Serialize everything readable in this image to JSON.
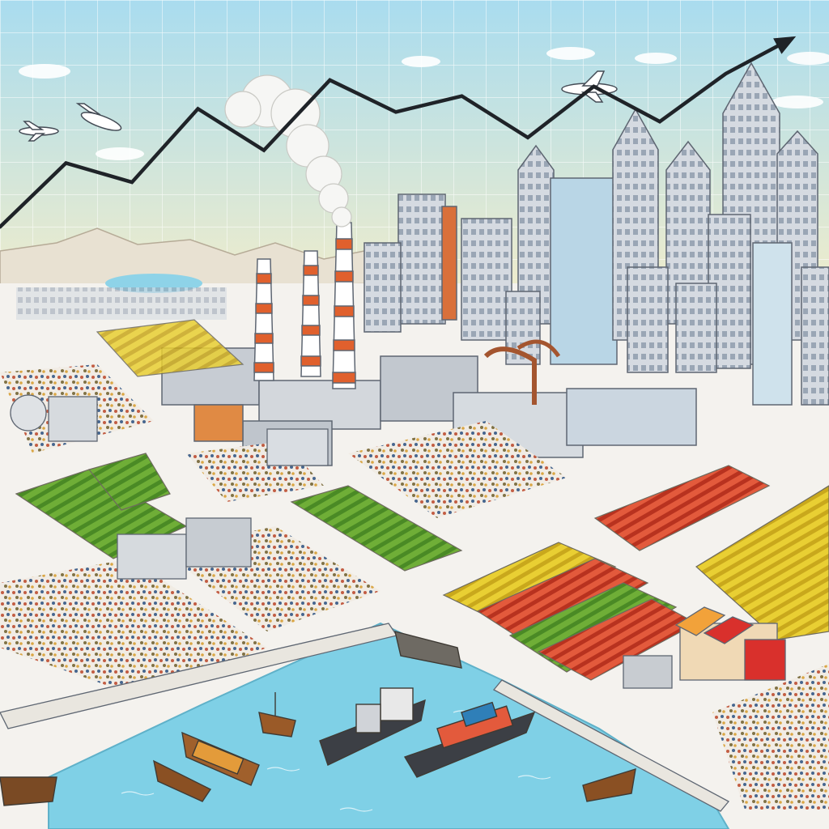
{
  "scene": {
    "colors": {
      "sky_top": "#a9dcef",
      "sky_bottom": "#fbefc6",
      "grid": "#ffffff",
      "trend_line": "#1f2328",
      "water": "#7fd0e6",
      "ground": "#f4f2ee",
      "chimney_stripe": "#e0602d",
      "crop_green": "#5b9a2e",
      "crop_yellow": "#e3c324",
      "crop_red": "#d8442f",
      "building": "#c9ced6",
      "awning_red": "#d9302c"
    },
    "trend_points": [
      [
        0,
        0.38
      ],
      [
        1,
        0.58
      ],
      [
        2,
        0.52
      ],
      [
        3,
        0.75
      ],
      [
        4,
        0.62
      ],
      [
        5,
        0.84
      ],
      [
        6,
        0.74
      ],
      [
        7,
        0.79
      ],
      [
        8,
        0.66
      ],
      [
        9,
        0.82
      ],
      [
        10,
        0.71
      ],
      [
        11,
        0.86
      ],
      [
        12,
        0.97
      ]
    ],
    "icons": {
      "arrow": "up-arrow-icon",
      "airplane": "airplane-icon",
      "smoke": "smoke-cloud-icon"
    }
  }
}
